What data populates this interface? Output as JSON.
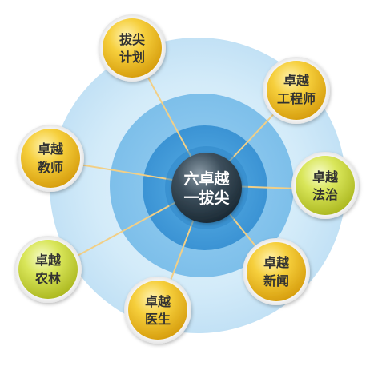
{
  "center": {
    "line1": "六卓越",
    "line2": "一拔尖"
  },
  "nodes": [
    {
      "id": "jihua",
      "line1": "拔尖",
      "line2": "计划",
      "color": "yellow"
    },
    {
      "id": "gongcheng",
      "line1": "卓越",
      "line2": "工程师",
      "color": "yellow"
    },
    {
      "id": "fazhi",
      "line1": "卓越",
      "line2": "法治",
      "color": "green"
    },
    {
      "id": "xinwen",
      "line1": "卓越",
      "line2": "新闻",
      "color": "yellow"
    },
    {
      "id": "yisheng",
      "line1": "卓越",
      "line2": "医生",
      "color": "yellow"
    },
    {
      "id": "nonglin",
      "line1": "卓越",
      "line2": "农林",
      "color": "green"
    },
    {
      "id": "jiaoshi",
      "line1": "卓越",
      "line2": "教师",
      "color": "yellow"
    }
  ],
  "colors": {
    "outer_ring": "#cfe8f8",
    "middle_ring": "#9fd0f1",
    "inner_ring": "#4aa3dd",
    "core_ring": "#2f86c9",
    "connector": "#f2cf86",
    "yellow_text": "#333333",
    "green_text": "#333333"
  }
}
